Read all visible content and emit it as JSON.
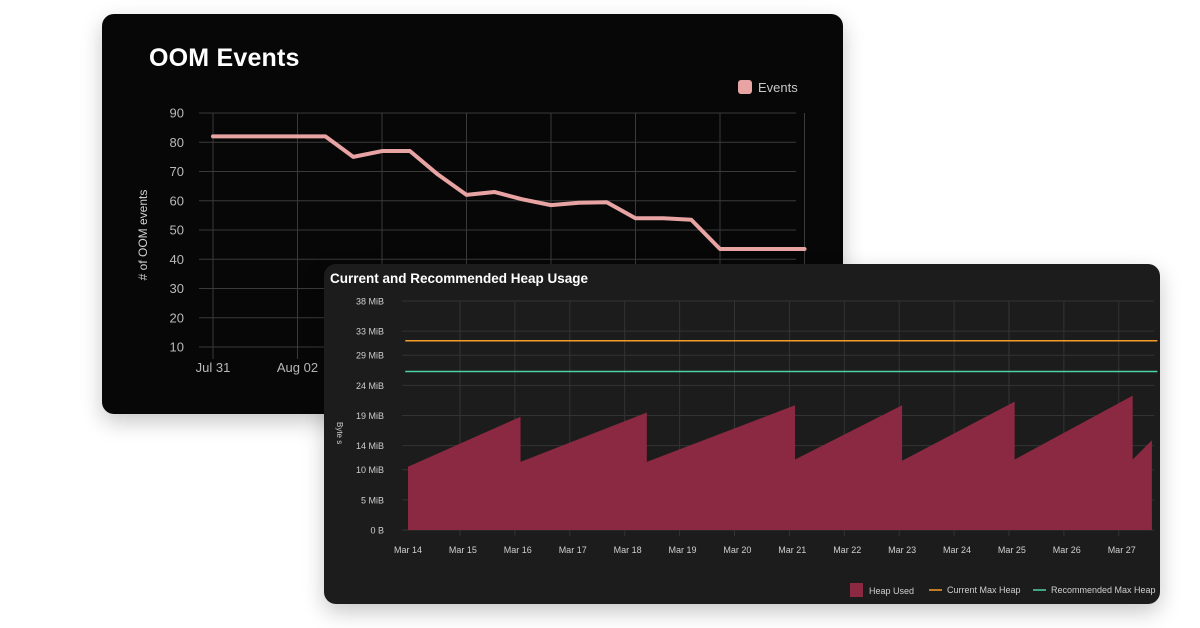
{
  "colors": {
    "events": "#e8a3a3",
    "heap_used": "#8b2942",
    "current_max": "#f39c2a",
    "recommended_max": "#4fd1a6"
  },
  "chart_data": [
    {
      "type": "line",
      "title": "OOM Events",
      "xlabel": "",
      "ylabel": "# of OOM events",
      "ylim": [
        10,
        90
      ],
      "yticks": [
        90,
        80,
        70,
        60,
        50,
        40,
        30,
        20,
        10
      ],
      "xtick_labels": [
        "Jul 31",
        "Aug 02"
      ],
      "legend": "top-right",
      "series": [
        {
          "name": "Events",
          "x": [
            0,
            0.33,
            0.5,
            0.66,
            0.83,
            1.0,
            1.33,
            1.66,
            2.0,
            2.33,
            2.66,
            3.0,
            3.33,
            3.66,
            4.0,
            4.33,
            4.66,
            5.0,
            5.33,
            5.66,
            6.0,
            6.33,
            6.66,
            7.0
          ],
          "values": [
            82,
            82,
            82,
            82,
            82,
            82,
            82,
            75,
            77,
            77,
            69,
            62,
            63,
            60.5,
            58.5,
            59.3,
            59.5,
            54,
            54,
            53.5,
            43.5,
            43.5,
            43.5,
            43.5
          ]
        }
      ]
    },
    {
      "type": "area",
      "title": "Current and Recommended Heap Usage",
      "xlabel": "",
      "ylabel": "Byte s",
      "ylim": [
        0,
        38
      ],
      "yticks": [
        "38 MiB",
        "33 MiB",
        "29 MiB",
        "24 MiB",
        "19 MiB",
        "14 MiB",
        "10 MiB",
        "5 MiB",
        "0 B"
      ],
      "ytick_values": [
        38,
        33,
        29,
        24,
        19,
        14,
        10,
        5,
        0
      ],
      "categories": [
        "Mar 14",
        "Mar 15",
        "Mar 16",
        "Mar 17",
        "Mar 18",
        "Mar 19",
        "Mar 20",
        "Mar 21",
        "Mar 22",
        "Mar 23",
        "Mar 24",
        "Mar 25",
        "Mar 26",
        "Mar 27"
      ],
      "legend": "bottom-right",
      "series": [
        {
          "name": "Heap Used",
          "style": "area",
          "x": [
            0,
            2.05,
            2.05,
            4.35,
            4.35,
            7.05,
            7.05,
            9.0,
            9.0,
            11.05,
            11.05,
            13.2,
            13.2,
            13.55
          ],
          "values": [
            10.5,
            18.8,
            11.3,
            19.5,
            11.3,
            20.7,
            11.7,
            20.7,
            11.5,
            21.3,
            11.7,
            22.3,
            11.7,
            14.9
          ]
        },
        {
          "name": "Current Max Heap",
          "style": "line",
          "x": [
            -0.05,
            13.65
          ],
          "values": [
            31.4,
            31.4
          ]
        },
        {
          "name": "Recommended Max Heap",
          "style": "line",
          "x": [
            -0.05,
            13.65
          ],
          "values": [
            26.3,
            26.3
          ]
        }
      ]
    }
  ]
}
